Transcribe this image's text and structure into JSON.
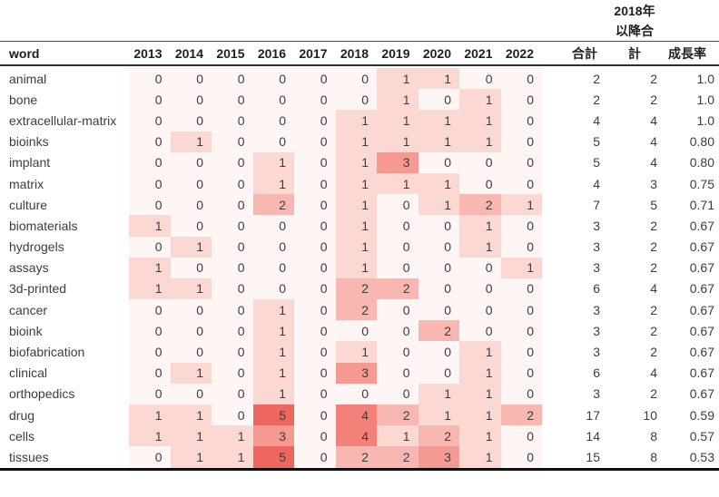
{
  "chart_data": {
    "type": "heatmap",
    "word_header": "word",
    "year_labels": [
      "2013",
      "2014",
      "2015",
      "2016",
      "2017",
      "2018",
      "2019",
      "2020",
      "2021",
      "2022"
    ],
    "total_header": "合計",
    "since2018_header_lines": [
      "2018年",
      "以降合",
      "計"
    ],
    "growth_header": "成長率",
    "legend_position": "none",
    "palette": {
      "0": "#fdf6f5",
      "1": "#fbd8d2",
      "2": "#f8b7b0",
      "3": "#f59a92",
      "4": "#f2817a",
      "5": "#ee675e"
    },
    "value_range": [
      0,
      5
    ],
    "rows": [
      {
        "word": "animal",
        "years": [
          0,
          0,
          0,
          0,
          0,
          0,
          1,
          1,
          0,
          0
        ],
        "total": 2,
        "since_2018": 2,
        "growth": "1.0"
      },
      {
        "word": "bone",
        "years": [
          0,
          0,
          0,
          0,
          0,
          0,
          1,
          0,
          1,
          0
        ],
        "total": 2,
        "since_2018": 2,
        "growth": "1.0"
      },
      {
        "word": "extracellular-matrix",
        "years": [
          0,
          0,
          0,
          0,
          0,
          1,
          1,
          1,
          1,
          0
        ],
        "total": 4,
        "since_2018": 4,
        "growth": "1.0"
      },
      {
        "word": "bioinks",
        "years": [
          0,
          1,
          0,
          0,
          0,
          1,
          1,
          1,
          1,
          0
        ],
        "total": 5,
        "since_2018": 4,
        "growth": "0.80"
      },
      {
        "word": "implant",
        "years": [
          0,
          0,
          0,
          1,
          0,
          1,
          3,
          0,
          0,
          0
        ],
        "total": 5,
        "since_2018": 4,
        "growth": "0.80"
      },
      {
        "word": "matrix",
        "years": [
          0,
          0,
          0,
          1,
          0,
          1,
          1,
          1,
          0,
          0
        ],
        "total": 4,
        "since_2018": 3,
        "growth": "0.75"
      },
      {
        "word": "culture",
        "years": [
          0,
          0,
          0,
          2,
          0,
          1,
          0,
          1,
          2,
          1
        ],
        "total": 7,
        "since_2018": 5,
        "growth": "0.71"
      },
      {
        "word": "biomaterials",
        "years": [
          1,
          0,
          0,
          0,
          0,
          1,
          0,
          0,
          1,
          0
        ],
        "total": 3,
        "since_2018": 2,
        "growth": "0.67"
      },
      {
        "word": "hydrogels",
        "years": [
          0,
          1,
          0,
          0,
          0,
          1,
          0,
          0,
          1,
          0
        ],
        "total": 3,
        "since_2018": 2,
        "growth": "0.67"
      },
      {
        "word": "assays",
        "years": [
          1,
          0,
          0,
          0,
          0,
          1,
          0,
          0,
          0,
          1
        ],
        "total": 3,
        "since_2018": 2,
        "growth": "0.67"
      },
      {
        "word": "3d-printed",
        "years": [
          1,
          1,
          0,
          0,
          0,
          2,
          2,
          0,
          0,
          0
        ],
        "total": 6,
        "since_2018": 4,
        "growth": "0.67"
      },
      {
        "word": "cancer",
        "years": [
          0,
          0,
          0,
          1,
          0,
          2,
          0,
          0,
          0,
          0
        ],
        "total": 3,
        "since_2018": 2,
        "growth": "0.67"
      },
      {
        "word": "bioink",
        "years": [
          0,
          0,
          0,
          1,
          0,
          0,
          0,
          2,
          0,
          0
        ],
        "total": 3,
        "since_2018": 2,
        "growth": "0.67"
      },
      {
        "word": "biofabrication",
        "years": [
          0,
          0,
          0,
          1,
          0,
          1,
          0,
          0,
          1,
          0
        ],
        "total": 3,
        "since_2018": 2,
        "growth": "0.67"
      },
      {
        "word": "clinical",
        "years": [
          0,
          1,
          0,
          1,
          0,
          3,
          0,
          0,
          1,
          0
        ],
        "total": 6,
        "since_2018": 4,
        "growth": "0.67"
      },
      {
        "word": "orthopedics",
        "years": [
          0,
          0,
          0,
          1,
          0,
          0,
          0,
          1,
          1,
          0
        ],
        "total": 3,
        "since_2018": 2,
        "growth": "0.67"
      },
      {
        "word": "drug",
        "years": [
          1,
          1,
          0,
          5,
          0,
          4,
          2,
          1,
          1,
          2
        ],
        "total": 17,
        "since_2018": 10,
        "growth": "0.59"
      },
      {
        "word": "cells",
        "years": [
          1,
          1,
          1,
          3,
          0,
          4,
          1,
          2,
          1,
          0
        ],
        "total": 14,
        "since_2018": 8,
        "growth": "0.57"
      },
      {
        "word": "tissues",
        "years": [
          0,
          1,
          1,
          5,
          0,
          2,
          2,
          3,
          1,
          0
        ],
        "total": 15,
        "since_2018": 8,
        "growth": "0.53"
      }
    ]
  }
}
